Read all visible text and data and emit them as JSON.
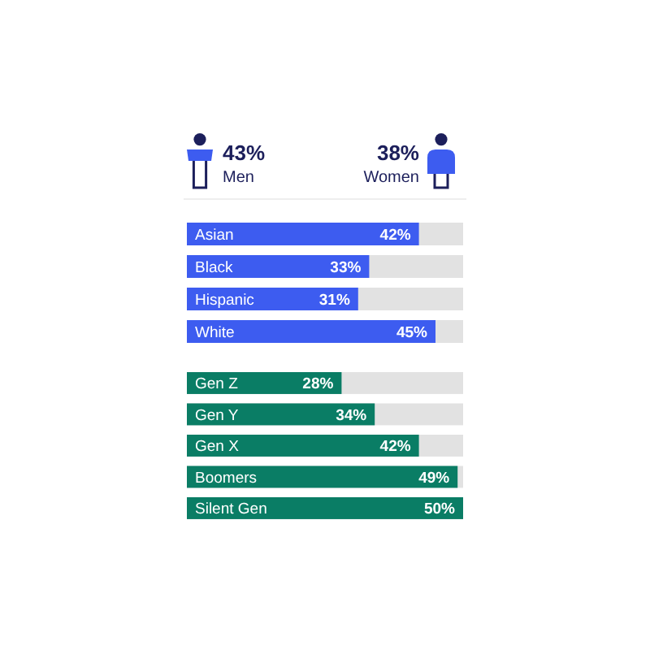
{
  "chart_data": [
    {
      "type": "other",
      "categories": [
        "Men",
        "Women"
      ],
      "value_labels": [
        "43%",
        "38%"
      ],
      "color": "#3d5cf0"
    },
    {
      "type": "bar",
      "orientation": "horizontal",
      "categories": [
        "Asian",
        "Black",
        "Hispanic",
        "White"
      ],
      "values": [
        42,
        33,
        31,
        45
      ],
      "value_labels": [
        "42%",
        "33%",
        "31%",
        "45%"
      ],
      "color": "#3d5cf0",
      "xlim": [
        0,
        50
      ]
    },
    {
      "type": "bar",
      "orientation": "horizontal",
      "categories": [
        "Gen Z",
        "Gen Y",
        "Gen X",
        "Boomers",
        "Silent Gen"
      ],
      "values": [
        28,
        34,
        42,
        49,
        50
      ],
      "value_labels": [
        "28%",
        "34%",
        "42%",
        "49%",
        "50%"
      ],
      "color": "#0a7d65",
      "xlim": [
        0,
        50
      ]
    }
  ]
}
